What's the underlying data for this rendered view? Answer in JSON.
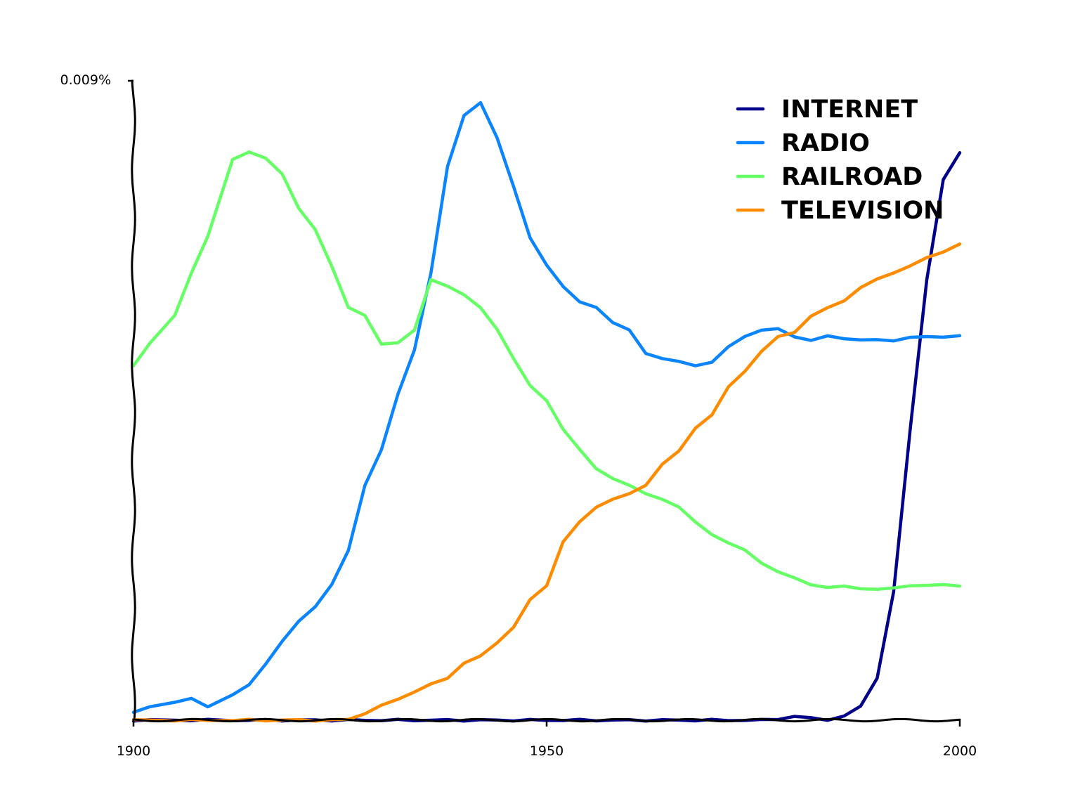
{
  "chart_data": {
    "type": "line",
    "title": "",
    "xlabel": "",
    "ylabel": "",
    "xlim": [
      1900,
      2000
    ],
    "ylim": [
      0,
      0.009
    ],
    "x_ticks": [
      1900,
      1950,
      2000
    ],
    "x_tick_labels": [
      "1900",
      "1950",
      "2000"
    ],
    "y_tick_label": "0.009%",
    "grid": false,
    "legend_position": "top-right",
    "x": [
      1900,
      1902,
      1905,
      1907,
      1909,
      1912,
      1914,
      1916,
      1918,
      1920,
      1922,
      1924,
      1926,
      1928,
      1930,
      1932,
      1934,
      1936,
      1938,
      1940,
      1942,
      1944,
      1946,
      1948,
      1950,
      1952,
      1954,
      1956,
      1958,
      1960,
      1962,
      1964,
      1966,
      1968,
      1970,
      1972,
      1974,
      1976,
      1978,
      1980,
      1982,
      1984,
      1986,
      1988,
      1990,
      1992,
      1994,
      1996,
      1998,
      2000
    ],
    "series": [
      {
        "name": "INTERNET",
        "color": "#00008b",
        "values": [
          0,
          0,
          0,
          0,
          0,
          0,
          0,
          0,
          0,
          0,
          0,
          0,
          0,
          0,
          0,
          0,
          0,
          0,
          0,
          0,
          0,
          0,
          0,
          0,
          0,
          0,
          0,
          0,
          0,
          0,
          0,
          0,
          0,
          0,
          0,
          0,
          0,
          0,
          2e-05,
          5e-05,
          3e-05,
          1e-05,
          5e-05,
          0.0002,
          0.0006,
          0.0018,
          0.0041,
          0.0062,
          0.0076,
          0.008
        ]
      },
      {
        "name": "RADIO",
        "color": "#0a84ff",
        "values": [
          0.0001,
          0.0002,
          0.00025,
          0.0003,
          0.0002,
          0.00035,
          0.0005,
          0.0008,
          0.0011,
          0.0014,
          0.0016,
          0.0019,
          0.0024,
          0.0033,
          0.0038,
          0.0046,
          0.0052,
          0.0063,
          0.0078,
          0.0085,
          0.0087,
          0.0082,
          0.0075,
          0.0068,
          0.0064,
          0.0061,
          0.0059,
          0.0058,
          0.0056,
          0.0055,
          0.00515,
          0.0051,
          0.00505,
          0.00498,
          0.00505,
          0.00525,
          0.0054,
          0.0055,
          0.0055,
          0.0054,
          0.00535,
          0.0054,
          0.00538,
          0.00535,
          0.00535,
          0.00535,
          0.00538,
          0.0054,
          0.0054,
          0.0054
        ]
      },
      {
        "name": "RAILROAD",
        "color": "#66ff66",
        "values": [
          0.005,
          0.0053,
          0.0057,
          0.0063,
          0.0068,
          0.0079,
          0.008,
          0.0079,
          0.0077,
          0.0072,
          0.0069,
          0.0064,
          0.0058,
          0.0057,
          0.0053,
          0.0053,
          0.0055,
          0.0062,
          0.0061,
          0.006,
          0.0058,
          0.0055,
          0.0051,
          0.0047,
          0.0045,
          0.0041,
          0.0038,
          0.00355,
          0.0034,
          0.0033,
          0.0032,
          0.0031,
          0.003,
          0.0028,
          0.0026,
          0.0025,
          0.0024,
          0.0022,
          0.0021,
          0.002,
          0.0019,
          0.00188,
          0.00188,
          0.00185,
          0.00185,
          0.00185,
          0.0019,
          0.0019,
          0.0019,
          0.0019
        ]
      },
      {
        "name": "TELEVISION",
        "color": "#ff8c00",
        "values": [
          0,
          0,
          0,
          0,
          0,
          0,
          0,
          0,
          0,
          0,
          0,
          0,
          1e-05,
          0.0001,
          0.0002,
          0.0003,
          0.0004,
          0.0005,
          0.0006,
          0.0008,
          0.0009,
          0.0011,
          0.0013,
          0.0017,
          0.0019,
          0.0025,
          0.0028,
          0.003,
          0.0031,
          0.0032,
          0.0033,
          0.0036,
          0.0038,
          0.0041,
          0.0043,
          0.0047,
          0.0049,
          0.0052,
          0.0054,
          0.00545,
          0.0057,
          0.0058,
          0.0059,
          0.0061,
          0.0062,
          0.0063,
          0.0064,
          0.0065,
          0.0066,
          0.0067
        ]
      }
    ]
  }
}
